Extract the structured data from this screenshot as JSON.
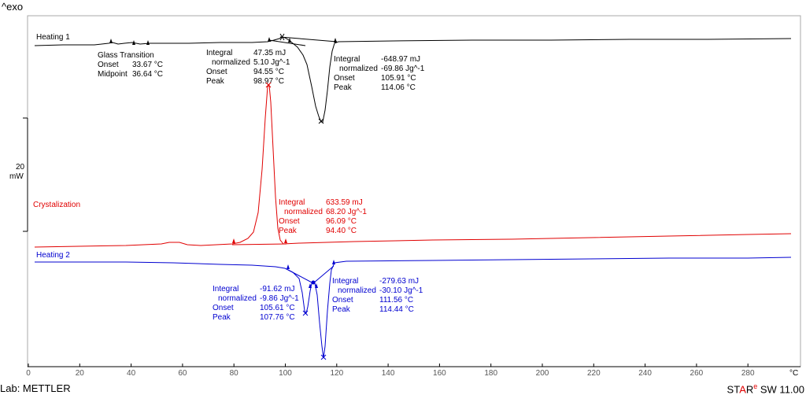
{
  "header": {
    "exo_label": "^exo"
  },
  "scale_bar": {
    "value": "20",
    "unit": "mW"
  },
  "x_axis": {
    "unit": "°C",
    "ticks": [
      "0",
      "20",
      "40",
      "60",
      "80",
      "100",
      "120",
      "140",
      "160",
      "180",
      "200",
      "220",
      "240",
      "260",
      "280"
    ]
  },
  "footer": {
    "lab": "Lab: METTLER",
    "brand_a": "ST",
    "brand_b": "A",
    "brand_c": "R",
    "brand_sup": "e",
    "brand_d": " SW 11.00"
  },
  "colors": {
    "heating1": "#000000",
    "crystallization": "#e00000",
    "heating2": "#0000d0"
  },
  "chart_data": {
    "type": "line",
    "xlabel": "°C",
    "xlim": [
      0,
      297
    ],
    "series": [
      {
        "name": "Heating 1",
        "color": "#000000",
        "annotations": {
          "glass_transition": {
            "title": "Glass Transition",
            "onset_label": "Onset",
            "onset": "33.67 °C",
            "midpoint_label": "Midpoint",
            "midpoint": "36.64 °C"
          },
          "peak1": {
            "integral_label": "Integral",
            "integral": "47.35 mJ",
            "normalized_label": "normalized",
            "normalized": "5.10 Jg^-1",
            "onset_label": "Onset",
            "onset": "94.55 °C",
            "peak_label": "Peak",
            "peak": "98.97 °C"
          },
          "peak2": {
            "integral_label": "Integral",
            "integral": "-648.97 mJ",
            "normalized_label": "normalized",
            "normalized": "-69.86 Jg^-1",
            "onset_label": "Onset",
            "onset": "105.91 °C",
            "peak_label": "Peak",
            "peak": "114.06 °C"
          }
        }
      },
      {
        "name": "Crystalization",
        "color": "#e00000",
        "annotations": {
          "peak1": {
            "integral_label": "Integral",
            "integral": "633.59 mJ",
            "normalized_label": "normalized",
            "normalized": "68.20 Jg^-1",
            "onset_label": "Onset",
            "onset": "96.09 °C",
            "peak_label": "Peak",
            "peak": "94.40 °C"
          }
        }
      },
      {
        "name": "Heating 2",
        "color": "#0000d0",
        "annotations": {
          "peak1": {
            "integral_label": "Integral",
            "integral": "-91.62 mJ",
            "normalized_label": "normalized",
            "normalized": "-9.86 Jg^-1",
            "onset_label": "Onset",
            "onset": "105.61 °C",
            "peak_label": "Peak",
            "peak": "107.76 °C"
          },
          "peak2": {
            "integral_label": "Integral",
            "integral": "-279.63 mJ",
            "normalized_label": "normalized",
            "normalized": "-30.10 Jg^-1",
            "onset_label": "Onset",
            "onset": "111.56 °C",
            "peak_label": "Peak",
            "peak": "114.44 °C"
          }
        }
      }
    ]
  }
}
